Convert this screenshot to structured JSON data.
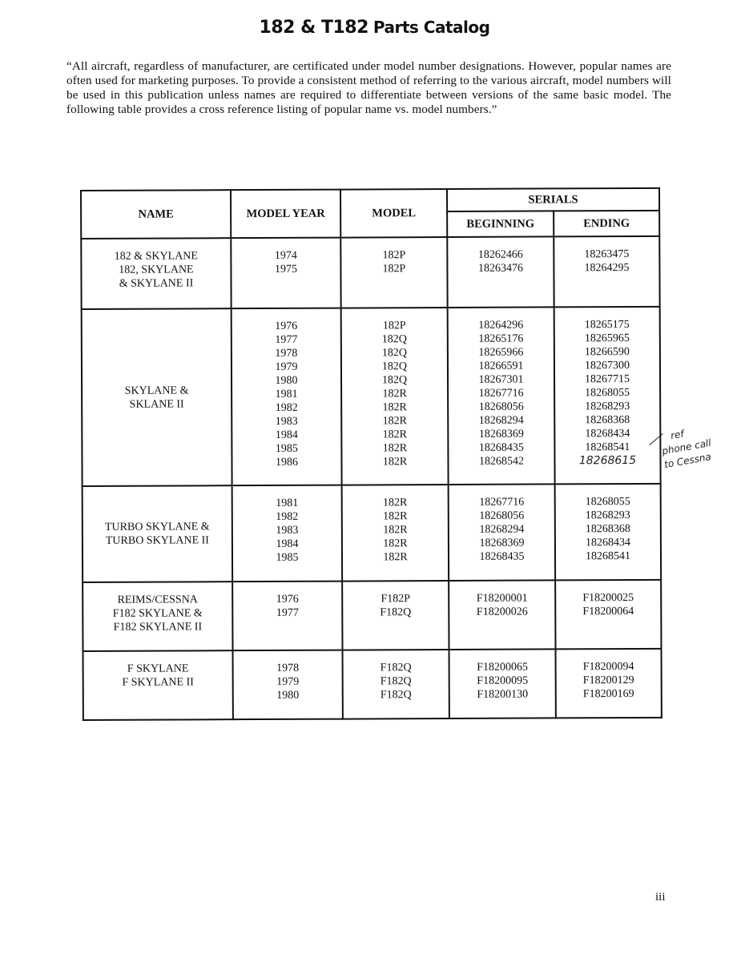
{
  "header": {
    "title": "182 & T182",
    "subtitle": "Parts Catalog"
  },
  "intro": "“All aircraft, regardless of manufacturer, are certificated under model number designations. However, popular names are often used for marketing purposes. To provide a consistent method of referring to the various aircraft, model numbers will be used in this publication unless names are required to differentiate between versions of the same basic model. The following table provides a cross reference listing of popular name vs. model numbers.”",
  "table": {
    "headers": {
      "name": "NAME",
      "model_year": "MODEL YEAR",
      "model": "MODEL",
      "serials": "SERIALS",
      "beginning": "BEGINNING",
      "ending": "ENDING"
    },
    "groups": [
      {
        "name": [
          "182 & SKYLANE",
          "182, SKYLANE",
          "& SKYLANE II"
        ],
        "rows": [
          {
            "year": "1974",
            "model": "182P",
            "begin": "18262466",
            "end": "18263475"
          },
          {
            "year": "1975",
            "model": "182P",
            "begin": "18263476",
            "end": "18264295"
          }
        ]
      },
      {
        "name": [
          "SKYLANE &",
          "SKLANE II"
        ],
        "rows": [
          {
            "year": "1976",
            "model": "182P",
            "begin": "18264296",
            "end": "18265175"
          },
          {
            "year": "1977",
            "model": "182Q",
            "begin": "18265176",
            "end": "18265965"
          },
          {
            "year": "1978",
            "model": "182Q",
            "begin": "18265966",
            "end": "18266590"
          },
          {
            "year": "1979",
            "model": "182Q",
            "begin": "18266591",
            "end": "18267300"
          },
          {
            "year": "1980",
            "model": "182Q",
            "begin": "18267301",
            "end": "18267715"
          },
          {
            "year": "1981",
            "model": "182R",
            "begin": "18267716",
            "end": "18268055"
          },
          {
            "year": "1982",
            "model": "182R",
            "begin": "18268056",
            "end": "18268293"
          },
          {
            "year": "1983",
            "model": "182R",
            "begin": "18268294",
            "end": "18268368"
          },
          {
            "year": "1984",
            "model": "182R",
            "begin": "18268369",
            "end": "18268434"
          },
          {
            "year": "1985",
            "model": "182R",
            "begin": "18268435",
            "end": "18268541"
          },
          {
            "year": "1986",
            "model": "182R",
            "begin": "18268542",
            "end": "18268615",
            "end_handwritten": true
          }
        ]
      },
      {
        "name": [
          "TURBO SKYLANE &",
          "TURBO SKYLANE II"
        ],
        "rows": [
          {
            "year": "1981",
            "model": "182R",
            "begin": "18267716",
            "end": "18268055"
          },
          {
            "year": "1982",
            "model": "182R",
            "begin": "18268056",
            "end": "18268293"
          },
          {
            "year": "1983",
            "model": "182R",
            "begin": "18268294",
            "end": "18268368"
          },
          {
            "year": "1984",
            "model": "182R",
            "begin": "18268369",
            "end": "18268434"
          },
          {
            "year": "1985",
            "model": "182R",
            "begin": "18268435",
            "end": "18268541"
          }
        ]
      },
      {
        "name": [
          "REIMS/CESSNA",
          "F182 SKYLANE &",
          "F182 SKYLANE II"
        ],
        "rows": [
          {
            "year": "1976",
            "model": "F182P",
            "begin": "F18200001",
            "end": "F18200025"
          },
          {
            "year": "1977",
            "model": "F182Q",
            "begin": "F18200026",
            "end": "F18200064"
          }
        ]
      },
      {
        "name": [
          "F SKYLANE",
          "F SKYLANE II"
        ],
        "rows": [
          {
            "year": "1978",
            "model": "F182Q",
            "begin": "F18200065",
            "end": "F18200094"
          },
          {
            "year": "1979",
            "model": "F182Q",
            "begin": "F18200095",
            "end": "F18200129"
          },
          {
            "year": "1980",
            "model": "F182Q",
            "begin": "F18200130",
            "end": "F18200169"
          }
        ]
      }
    ]
  },
  "handwritten_note": [
    "ref",
    "phone call",
    "to Cessna"
  ],
  "page_number": "iii"
}
